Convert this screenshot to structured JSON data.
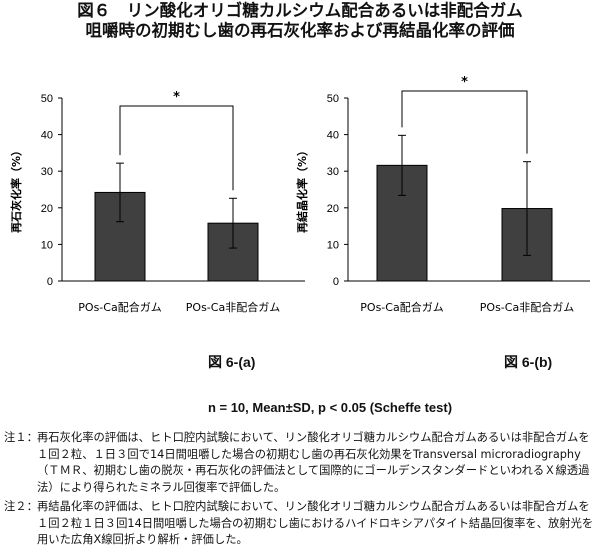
{
  "title": {
    "line1": "図６　リン酸化オリゴ糖カルシウム配合あるいは非配合ガム",
    "line2": "咀嚼時の初期むし歯の再石灰化率および再結晶化率の評価"
  },
  "chart_data": [
    {
      "type": "bar",
      "figure_label": "図 6-(a)",
      "ylabel": "再石灰化率（%）",
      "ylim": [
        0,
        50
      ],
      "yticks": [
        0,
        10,
        20,
        30,
        40,
        50
      ],
      "categories": [
        "POs-Ca配合ガム",
        "POs-Ca非配合ガム"
      ],
      "values": [
        24.2,
        15.8
      ],
      "errors": [
        8.0,
        6.8
      ],
      "significance": {
        "marker": "*",
        "between": [
          0,
          1
        ]
      }
    },
    {
      "type": "bar",
      "figure_label": "図 6-(b)",
      "ylabel": "再結晶化率（%）",
      "ylim": [
        0,
        50
      ],
      "yticks": [
        0,
        10,
        20,
        30,
        40,
        50
      ],
      "categories": [
        "POs-Ca配合ガム",
        "POs-Ca非配合ガム"
      ],
      "values": [
        31.6,
        19.8
      ],
      "errors": [
        8.2,
        12.8
      ],
      "significance": {
        "marker": "*",
        "between": [
          0,
          1
        ]
      }
    }
  ],
  "stats_note": "n = 10, Mean±SD,  p < 0.05 (Scheffe test)",
  "notes": [
    {
      "tag": "注１：",
      "text": "再石灰化率の評価は、ヒト口腔内試験において、リン酸化オリゴ糖カルシウム配合ガムあるいは非配合ガムを１回２粒、１日３回で14日間咀嚼した場合の初期むし歯の再石灰化効果をTransversal microradiography（ＴＭＲ、初期むし歯の脱灰・再石灰化の評価法として国際的にゴールデンスタンダードといわれるＸ線透過法）により得られたミネラル回復率で評価した。"
    },
    {
      "tag": "注２：",
      "text": "再結晶化率の評価は、ヒト口腔内試験において、リン酸化オリゴ糖カルシウム配合ガムあるいは非配合ガムを１回２粒１日３回14日間咀嚼した場合の初期むし歯におけるハイドロキシアパタイト結晶回復率を、放射光を用いた広角X線回折より解析・評価した。"
    }
  ]
}
